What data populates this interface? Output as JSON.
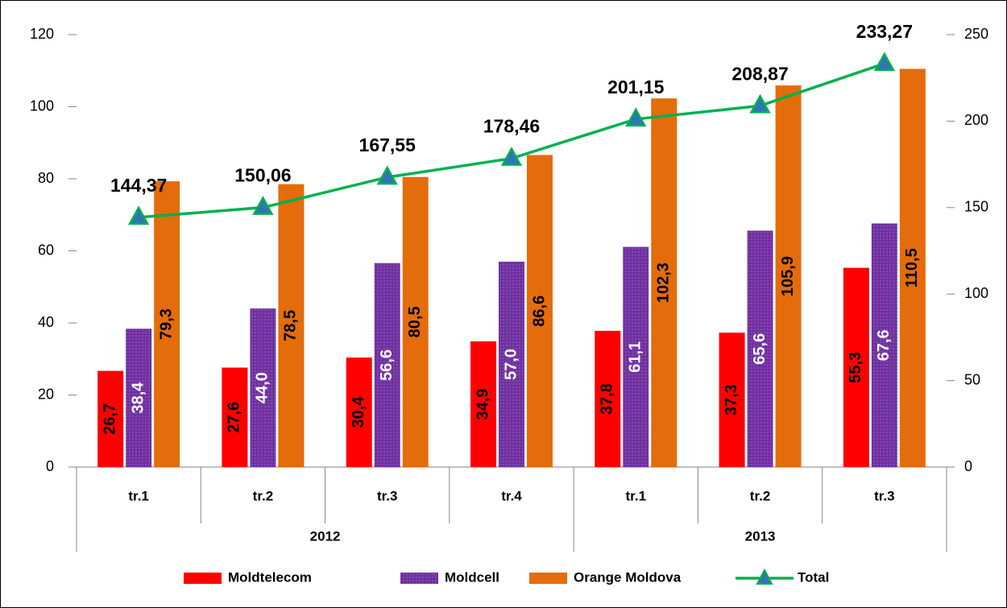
{
  "chart_data": {
    "type": "bar",
    "categories": [
      "tr.1",
      "tr.2",
      "tr.3",
      "tr.4",
      "tr.1",
      "tr.2",
      "tr.3"
    ],
    "x_groups": [
      "2012",
      "2012",
      "2012",
      "2012",
      "2013",
      "2013",
      "2013"
    ],
    "series": [
      {
        "name": "Moldtelecom",
        "type": "bar",
        "color": "#ff0000",
        "label_color": "#000000",
        "values": [
          26.7,
          27.6,
          30.4,
          34.9,
          37.8,
          37.3,
          55.3
        ],
        "value_labels": [
          "26,7",
          "27,6",
          "30,4",
          "34,9",
          "37,8",
          "37,3",
          "55,3"
        ]
      },
      {
        "name": "Moldcell",
        "type": "bar",
        "color": "#7030a0",
        "label_color": "#ffffff",
        "values": [
          38.4,
          44.0,
          56.6,
          57.0,
          61.1,
          65.6,
          67.6
        ],
        "value_labels": [
          "38,4",
          "44,0",
          "56,6",
          "57,0",
          "61,1",
          "65,6",
          "67,6"
        ]
      },
      {
        "name": "Orange Moldova",
        "type": "bar",
        "color": "#e46c0a",
        "label_color": "#000000",
        "values": [
          79.3,
          78.5,
          80.5,
          86.6,
          102.3,
          105.9,
          110.5
        ],
        "value_labels": [
          "79,3",
          "78,5",
          "80,5",
          "86,6",
          "102,3",
          "105,9",
          "110,5"
        ]
      },
      {
        "name": "Total",
        "type": "line",
        "axis": "y2",
        "color": "#00b050",
        "marker_color": "#2e75b6",
        "values": [
          144.37,
          150.06,
          167.55,
          178.46,
          201.15,
          208.87,
          233.27
        ],
        "value_labels": [
          "144,37",
          "150,06",
          "167,55",
          "178,46",
          "201,15",
          "208,87",
          "233,27"
        ]
      }
    ],
    "ylim": [
      0,
      120
    ],
    "yticks": [
      0,
      20,
      40,
      60,
      80,
      100,
      120
    ],
    "y2lim": [
      0,
      250
    ],
    "y2ticks": [
      0,
      50,
      100,
      150,
      200,
      250
    ],
    "grid": false
  }
}
